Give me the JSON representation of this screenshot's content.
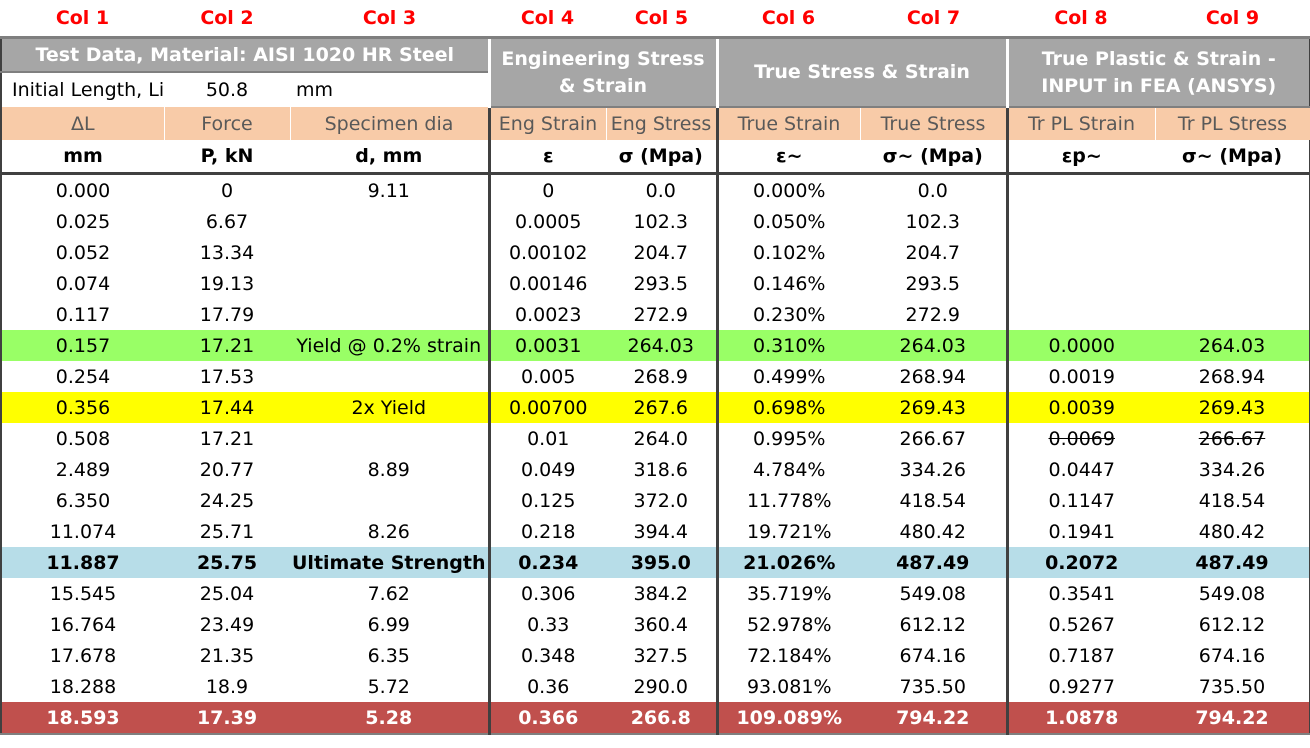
{
  "col_numbers": [
    "Col 1",
    "Col 2",
    "Col 3",
    "Col 4",
    "Col 5",
    "Col 6",
    "Col 7",
    "Col 8",
    "Col 9"
  ],
  "groups": {
    "test_data": "Test Data, Material: AISI 1020 HR Steel",
    "engineering": "Engineering Stress & Strain",
    "true_ss": "True Stress & Strain",
    "true_plastic": "True Plastic & Strain - INPUT in FEA (ANSYS)"
  },
  "initial_length": {
    "label": "Initial Length, Li",
    "value": "50.8",
    "unit": "mm"
  },
  "column_labels": [
    "ΔL",
    "Force",
    "Specimen dia",
    "Eng Strain",
    "Eng Stress",
    "True Strain",
    "True Stress",
    "Tr PL Strain",
    "Tr PL Stress"
  ],
  "column_units": [
    "mm",
    "P, kN",
    "d, mm",
    "ε",
    "σ (Mpa)",
    "ε~",
    "σ~ (Mpa)",
    "εp~",
    "σ~ (Mpa)"
  ],
  "rows": [
    {
      "c": [
        "0.000",
        "0",
        "9.11",
        "0",
        "0.0",
        "0.000%",
        "0.0",
        "",
        ""
      ]
    },
    {
      "c": [
        "0.025",
        "6.67",
        "",
        "0.0005",
        "102.3",
        "0.050%",
        "102.3",
        "",
        ""
      ]
    },
    {
      "c": [
        "0.052",
        "13.34",
        "",
        "0.00102",
        "204.7",
        "0.102%",
        "204.7",
        "",
        ""
      ]
    },
    {
      "c": [
        "0.074",
        "19.13",
        "",
        "0.00146",
        "293.5",
        "0.146%",
        "293.5",
        "",
        ""
      ]
    },
    {
      "c": [
        "0.117",
        "17.79",
        "",
        "0.0023",
        "272.9",
        "0.230%",
        "272.9",
        "",
        ""
      ]
    },
    {
      "c": [
        "0.157",
        "17.21",
        "Yield @ 0.2% strain",
        "0.0031",
        "264.03",
        "0.310%",
        "264.03",
        "0.0000",
        "264.03"
      ]
    },
    {
      "c": [
        "0.254",
        "17.53",
        "",
        "0.005",
        "268.9",
        "0.499%",
        "268.94",
        "0.0019",
        "268.94"
      ]
    },
    {
      "c": [
        "0.356",
        "17.44",
        "2x Yield",
        "0.00700",
        "267.6",
        "0.698%",
        "269.43",
        "0.0039",
        "269.43"
      ]
    },
    {
      "c": [
        "0.508",
        "17.21",
        "",
        "0.01",
        "264.0",
        "0.995%",
        "266.67",
        "0.0069",
        "266.67"
      ]
    },
    {
      "c": [
        "2.489",
        "20.77",
        "8.89",
        "0.049",
        "318.6",
        "4.784%",
        "334.26",
        "0.0447",
        "334.26"
      ]
    },
    {
      "c": [
        "6.350",
        "24.25",
        "",
        "0.125",
        "372.0",
        "11.778%",
        "418.54",
        "0.1147",
        "418.54"
      ]
    },
    {
      "c": [
        "11.074",
        "25.71",
        "8.26",
        "0.218",
        "394.4",
        "19.721%",
        "480.42",
        "0.1941",
        "480.42"
      ]
    },
    {
      "c": [
        "11.887",
        "25.75",
        "Ultimate Strength",
        "0.234",
        "395.0",
        "21.026%",
        "487.49",
        "0.2072",
        "487.49"
      ]
    },
    {
      "c": [
        "15.545",
        "25.04",
        "7.62",
        "0.306",
        "384.2",
        "35.719%",
        "549.08",
        "0.3541",
        "549.08"
      ]
    },
    {
      "c": [
        "16.764",
        "23.49",
        "6.99",
        "0.33",
        "360.4",
        "52.978%",
        "612.12",
        "0.5267",
        "612.12"
      ]
    },
    {
      "c": [
        "17.678",
        "21.35",
        "6.35",
        "0.348",
        "327.5",
        "72.184%",
        "674.16",
        "0.7187",
        "674.16"
      ]
    },
    {
      "c": [
        "18.288",
        "18.9",
        "5.72",
        "0.36",
        "290.0",
        "93.081%",
        "735.50",
        "0.9277",
        "735.50"
      ]
    },
    {
      "c": [
        "18.593",
        "17.39",
        "5.28",
        "0.366",
        "266.8",
        "109.089%",
        "794.22",
        "1.0878",
        "794.22"
      ]
    }
  ],
  "colors": {
    "column_number": "#ff0000",
    "group_header": "#a6a6a6",
    "label_row": "#f8cba8",
    "yield_row": "#99ff66",
    "two_x_yield_row": "#ffff00",
    "ultimate_row": "#b7dde8",
    "fracture_row": "#c0504d"
  }
}
